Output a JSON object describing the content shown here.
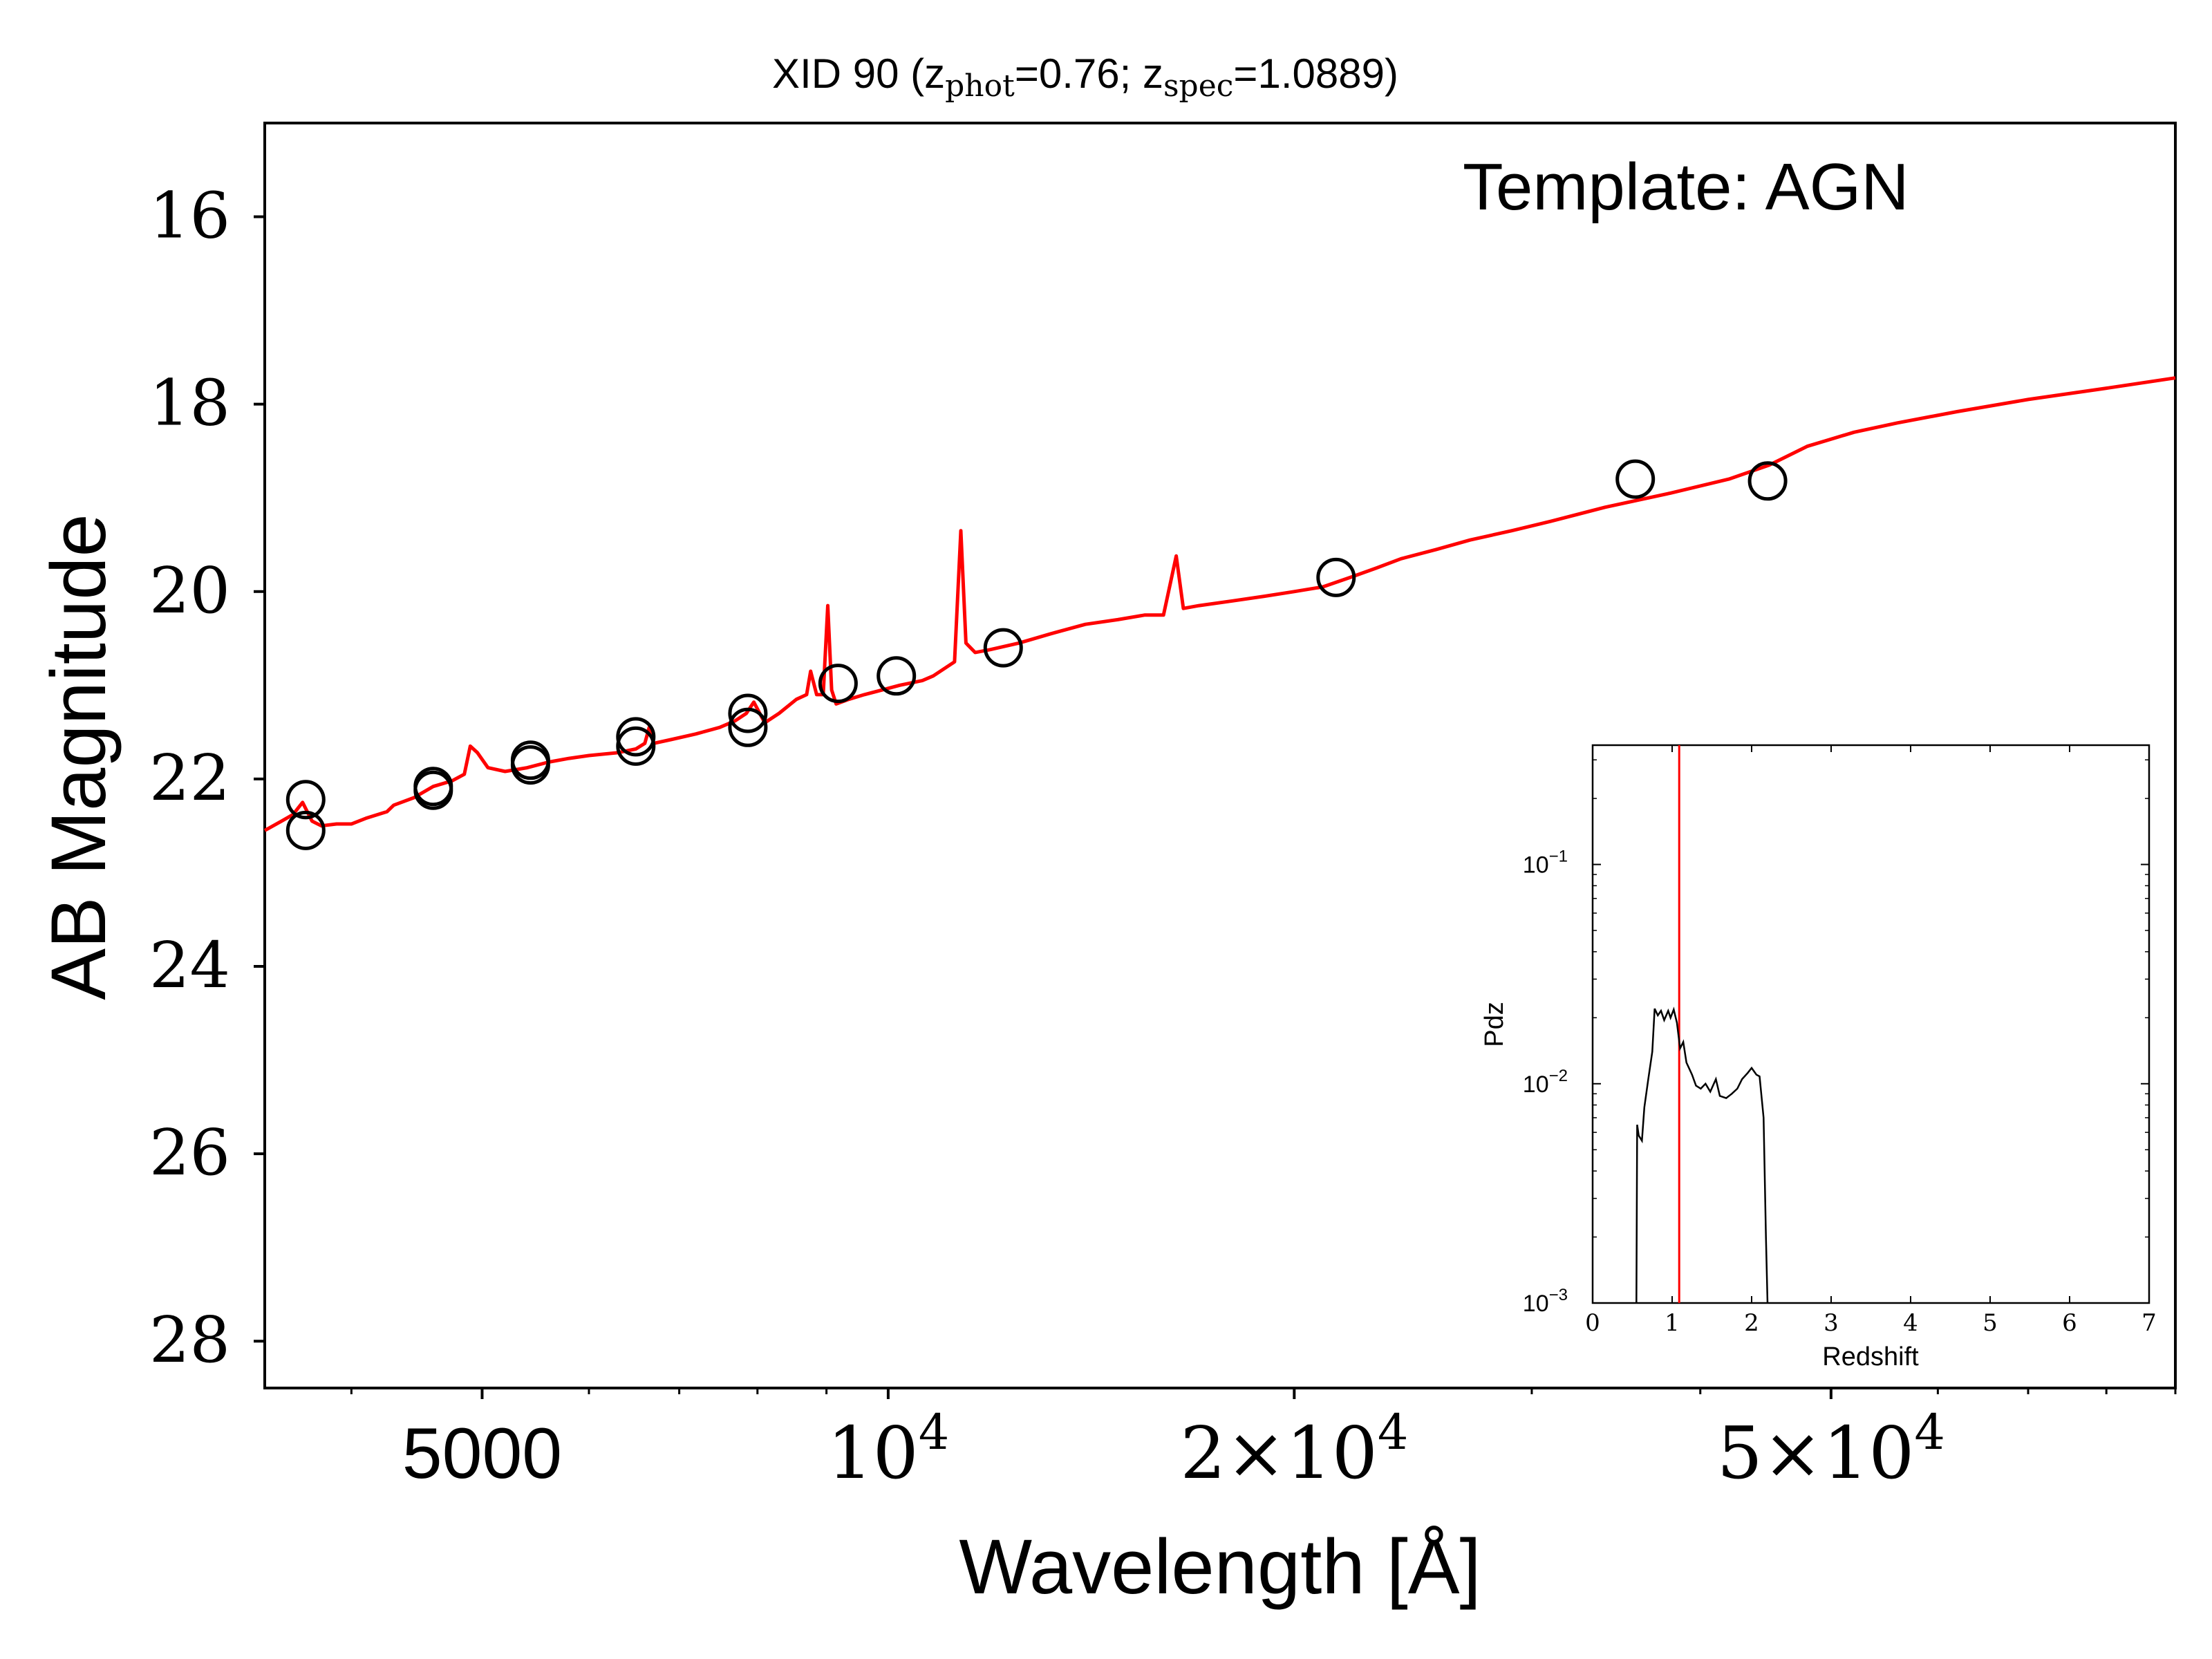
{
  "chart_data": [
    {
      "type": "scatter",
      "title": {
        "prefix": "XID 90 (z",
        "phot_sub": "phot",
        "mid": "=0.76; z",
        "spec_sub": "spec",
        "suffix": "=1.0889)"
      },
      "annotation": "Template: AGN",
      "xlabel": "Wavelength [Å]",
      "ylabel": "AB Magnitude",
      "x_scale": "log",
      "xlim": [
        3450,
        90000
      ],
      "ylim": [
        28.5,
        15.0
      ],
      "y_inverted": true,
      "xticks": [
        {
          "value": 5000,
          "label": "5000"
        },
        {
          "value": 10000,
          "label": "10",
          "sup": "4"
        },
        {
          "value": 20000,
          "label": "2×10",
          "sup": "4"
        },
        {
          "value": 50000,
          "label": "5×10",
          "sup": "4"
        }
      ],
      "yticks": [
        16,
        18,
        20,
        22,
        24,
        26,
        28
      ],
      "series": [
        {
          "kind": "line",
          "color": "#ff0000",
          "points": [
            [
              3450,
              22.55
            ],
            [
              3550,
              22.45
            ],
            [
              3620,
              22.38
            ],
            [
              3680,
              22.25
            ],
            [
              3740,
              22.45
            ],
            [
              3800,
              22.5
            ],
            [
              3900,
              22.48
            ],
            [
              4000,
              22.48
            ],
            [
              4100,
              22.42
            ],
            [
              4250,
              22.35
            ],
            [
              4300,
              22.28
            ],
            [
              4450,
              22.2
            ],
            [
              4600,
              22.08
            ],
            [
              4750,
              22.02
            ],
            [
              4850,
              21.95
            ],
            [
              4900,
              21.65
            ],
            [
              4960,
              21.72
            ],
            [
              5050,
              21.88
            ],
            [
              5200,
              21.92
            ],
            [
              5400,
              21.88
            ],
            [
              5600,
              21.82
            ],
            [
              5800,
              21.78
            ],
            [
              6000,
              21.75
            ],
            [
              6300,
              21.72
            ],
            [
              6500,
              21.68
            ],
            [
              6600,
              21.62
            ],
            [
              6650,
              21.45
            ],
            [
              6700,
              21.62
            ],
            [
              6900,
              21.58
            ],
            [
              7200,
              21.52
            ],
            [
              7500,
              21.45
            ],
            [
              7700,
              21.38
            ],
            [
              7850,
              21.3
            ],
            [
              7950,
              21.18
            ],
            [
              8100,
              21.4
            ],
            [
              8300,
              21.3
            ],
            [
              8550,
              21.15
            ],
            [
              8700,
              21.1
            ],
            [
              8760,
              20.85
            ],
            [
              8850,
              21.1
            ],
            [
              8950,
              21.1
            ],
            [
              9020,
              20.15
            ],
            [
              9080,
              21.05
            ],
            [
              9150,
              21.2
            ],
            [
              9350,
              21.15
            ],
            [
              9600,
              21.1
            ],
            [
              9900,
              21.05
            ],
            [
              10200,
              21.0
            ],
            [
              10600,
              20.95
            ],
            [
              10800,
              20.9
            ],
            [
              11200,
              20.75
            ],
            [
              11320,
              19.35
            ],
            [
              11420,
              20.55
            ],
            [
              11600,
              20.65
            ],
            [
              11900,
              20.62
            ],
            [
              12500,
              20.55
            ],
            [
              13200,
              20.45
            ],
            [
              14000,
              20.35
            ],
            [
              14800,
              20.3
            ],
            [
              15500,
              20.25
            ],
            [
              16000,
              20.25
            ],
            [
              16350,
              19.62
            ],
            [
              16550,
              20.18
            ],
            [
              17000,
              20.15
            ],
            [
              18000,
              20.1
            ],
            [
              19000,
              20.05
            ],
            [
              20000,
              20.0
            ],
            [
              21000,
              19.95
            ],
            [
              22000,
              19.85
            ],
            [
              23000,
              19.75
            ],
            [
              24000,
              19.65
            ],
            [
              25500,
              19.55
            ],
            [
              27000,
              19.45
            ],
            [
              29000,
              19.35
            ],
            [
              31000,
              19.25
            ],
            [
              34000,
              19.1
            ],
            [
              38000,
              18.95
            ],
            [
              42000,
              18.8
            ],
            [
              45000,
              18.65
            ],
            [
              48000,
              18.45
            ],
            [
              52000,
              18.3
            ],
            [
              56000,
              18.2
            ],
            [
              62000,
              18.08
            ],
            [
              70000,
              17.95
            ],
            [
              80000,
              17.83
            ],
            [
              90000,
              17.72
            ]
          ]
        },
        {
          "kind": "points",
          "marker": "open-circle",
          "color": "#000000",
          "points": [
            [
              3700,
              22.22
            ],
            [
              3700,
              22.55
            ],
            [
              4600,
              22.08
            ],
            [
              4600,
              22.12
            ],
            [
              5430,
              21.8
            ],
            [
              5430,
              21.85
            ],
            [
              6500,
              21.55
            ],
            [
              6500,
              21.65
            ],
            [
              7870,
              21.3
            ],
            [
              7870,
              21.45
            ],
            [
              9180,
              20.98
            ],
            [
              10140,
              20.9
            ],
            [
              12170,
              20.6
            ],
            [
              21480,
              19.85
            ],
            [
              35800,
              18.8
            ],
            [
              44870,
              18.82
            ]
          ]
        }
      ]
    },
    {
      "type": "line",
      "xlabel": "Redshift",
      "ylabel": "Pdz",
      "x_scale": "linear",
      "y_scale": "log",
      "xlim": [
        0,
        7
      ],
      "ylim": [
        0.001,
        0.35
      ],
      "xticks": [
        "0",
        "1",
        "2",
        "3",
        "4",
        "5",
        "6",
        "7"
      ],
      "yticks": [
        {
          "value": 0.1,
          "base": "10",
          "exp": "−1"
        },
        {
          "value": 0.01,
          "base": "10",
          "exp": "−2"
        },
        {
          "value": 0.001,
          "base": "10",
          "exp": "−3"
        }
      ],
      "marker_line": {
        "x": 1.0889,
        "color": "#ff0000"
      },
      "series": [
        {
          "color": "#000000",
          "points": [
            [
              0.55,
              0.001
            ],
            [
              0.56,
              0.0065
            ],
            [
              0.58,
              0.0058
            ],
            [
              0.62,
              0.0055
            ],
            [
              0.65,
              0.0078
            ],
            [
              0.7,
              0.0105
            ],
            [
              0.75,
              0.014
            ],
            [
              0.78,
              0.022
            ],
            [
              0.82,
              0.0205
            ],
            [
              0.86,
              0.0215
            ],
            [
              0.9,
              0.0195
            ],
            [
              0.95,
              0.0215
            ],
            [
              0.98,
              0.02
            ],
            [
              1.02,
              0.0218
            ],
            [
              1.06,
              0.019
            ],
            [
              1.1,
              0.0145
            ],
            [
              1.14,
              0.0155
            ],
            [
              1.18,
              0.0125
            ],
            [
              1.25,
              0.011
            ],
            [
              1.3,
              0.0098
            ],
            [
              1.36,
              0.0095
            ],
            [
              1.42,
              0.01
            ],
            [
              1.48,
              0.0092
            ],
            [
              1.55,
              0.0105
            ],
            [
              1.6,
              0.0088
            ],
            [
              1.68,
              0.0086
            ],
            [
              1.75,
              0.009
            ],
            [
              1.82,
              0.0095
            ],
            [
              1.88,
              0.0105
            ],
            [
              1.95,
              0.0112
            ],
            [
              2.0,
              0.0118
            ],
            [
              2.06,
              0.011
            ],
            [
              2.1,
              0.0108
            ],
            [
              2.15,
              0.007
            ],
            [
              2.18,
              0.002
            ],
            [
              2.2,
              0.001
            ]
          ]
        }
      ]
    }
  ]
}
